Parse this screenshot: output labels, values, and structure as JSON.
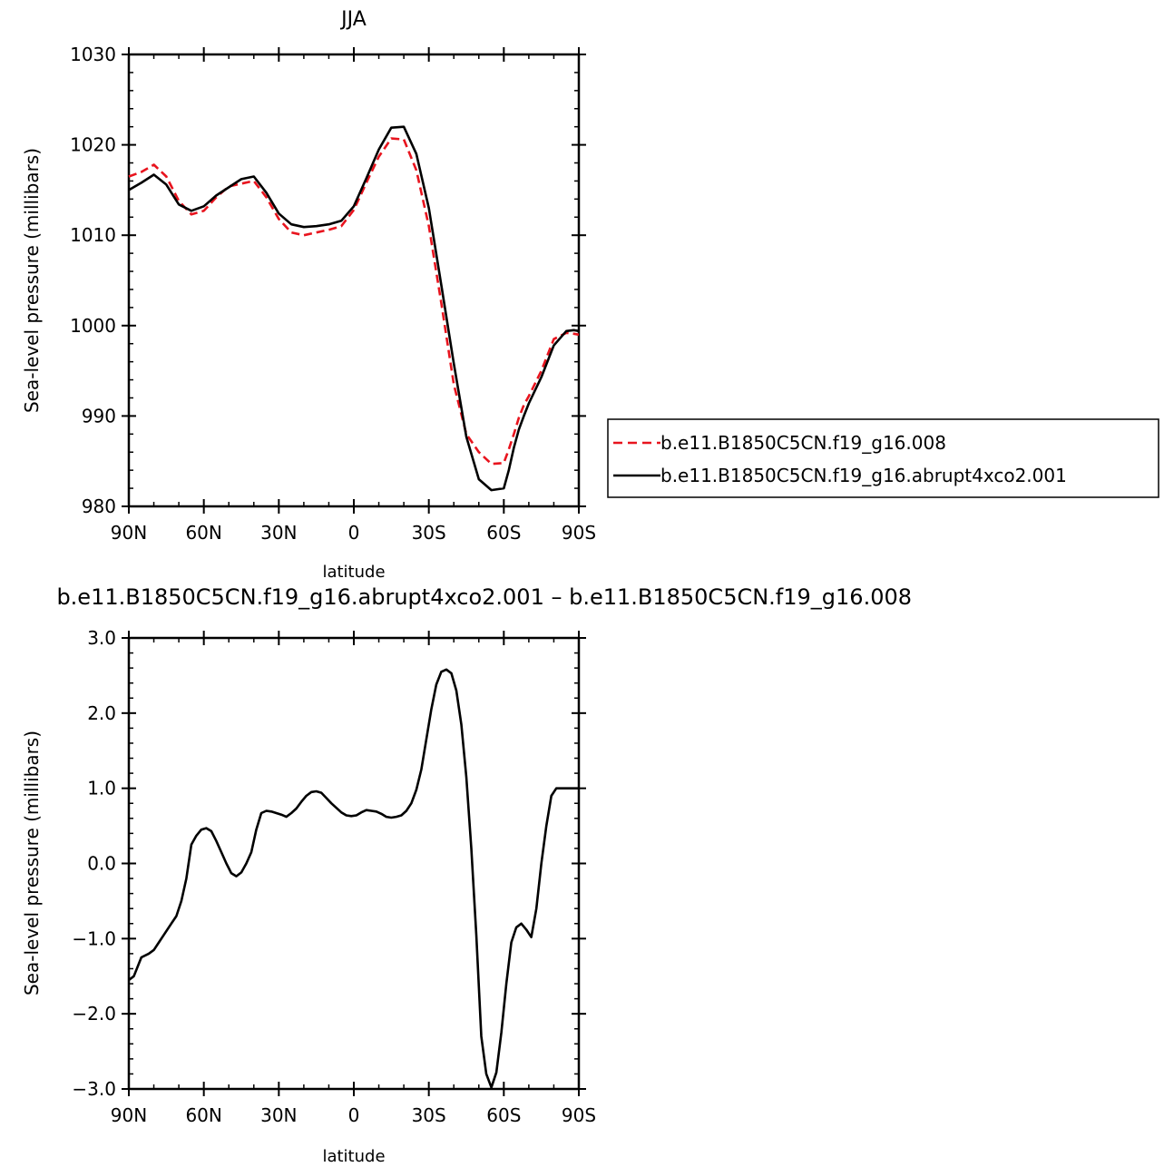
{
  "chart_data": [
    {
      "type": "line",
      "title": "JJA",
      "xlabel": "latitude",
      "ylabel": "Sea-level pressure (millibars)",
      "xlim": [
        90,
        -90
      ],
      "ylim": [
        980,
        1030
      ],
      "x_ticks": [
        90,
        60,
        30,
        0,
        -30,
        -60,
        -90
      ],
      "x_tick_labels": [
        "90N",
        "60N",
        "30N",
        "0",
        "30S",
        "60S",
        "90S"
      ],
      "y_ticks": [
        980,
        990,
        1000,
        1010,
        1020,
        1030
      ],
      "y_tick_labels": [
        "980",
        "990",
        "1000",
        "1010",
        "1020",
        "1030"
      ],
      "legend": "right",
      "series": [
        {
          "name": "b.e11.B1850C5CN.f19_g16.008",
          "color": "#e8141e",
          "dash": "dashed",
          "x": [
            90,
            85,
            80,
            75,
            70,
            65,
            60,
            55,
            50,
            45,
            40,
            35,
            30,
            25,
            20,
            15,
            10,
            5,
            0,
            -5,
            -10,
            -15,
            -20,
            -25,
            -30,
            -35,
            -40,
            -45,
            -50,
            -55,
            -60,
            -62,
            -64,
            -66,
            -68,
            -70,
            -75,
            -80,
            -85,
            -88,
            -90
          ],
          "y": [
            1016.5,
            1017.0,
            1017.8,
            1016.5,
            1013.8,
            1012.3,
            1012.7,
            1014.2,
            1015.4,
            1015.7,
            1016.0,
            1014.2,
            1011.8,
            1010.3,
            1010.0,
            1010.3,
            1010.6,
            1011.0,
            1012.8,
            1015.8,
            1018.7,
            1020.7,
            1020.6,
            1017.2,
            1011.0,
            1002.5,
            993.5,
            988.0,
            986.0,
            984.7,
            984.8,
            986.3,
            988.0,
            989.8,
            991.2,
            992.2,
            995.0,
            998.5,
            999.2,
            999.1,
            999.0
          ]
        },
        {
          "name": "b.e11.B1850C5CN.f19_g16.abrupt4xco2.001",
          "color": "#000000",
          "dash": "solid",
          "x": [
            90,
            85,
            80,
            75,
            70,
            65,
            60,
            55,
            50,
            45,
            40,
            35,
            30,
            25,
            20,
            15,
            10,
            5,
            0,
            -5,
            -10,
            -15,
            -20,
            -25,
            -30,
            -35,
            -40,
            -45,
            -50,
            -55,
            -60,
            -62,
            -64,
            -66,
            -68,
            -70,
            -75,
            -80,
            -85,
            -88,
            -90
          ],
          "y": [
            1015.0,
            1015.8,
            1016.7,
            1015.6,
            1013.4,
            1012.7,
            1013.2,
            1014.4,
            1015.3,
            1016.2,
            1016.5,
            1014.7,
            1012.4,
            1011.2,
            1010.9,
            1011.0,
            1011.2,
            1011.6,
            1013.2,
            1016.3,
            1019.5,
            1021.9,
            1022.0,
            1019.0,
            1013.0,
            1004.5,
            995.8,
            987.7,
            983.0,
            981.8,
            982.0,
            984.0,
            986.5,
            988.5,
            990.0,
            991.4,
            994.3,
            997.8,
            999.4,
            999.5,
            999.4
          ]
        }
      ]
    },
    {
      "type": "line",
      "title": "b.e11.B1850C5CN.f19_g16.abrupt4xco2.001 – b.e11.B1850C5CN.f19_g16.008",
      "xlabel": "latitude",
      "ylabel": "Sea-level pressure (millibars)",
      "xlim": [
        90,
        -90
      ],
      "ylim": [
        -3.0,
        3.0
      ],
      "x_ticks": [
        90,
        60,
        30,
        0,
        -30,
        -60,
        -90
      ],
      "x_tick_labels": [
        "90N",
        "60N",
        "30N",
        "0",
        "30S",
        "60S",
        "90S"
      ],
      "y_ticks": [
        -3.0,
        -2.0,
        -1.0,
        0.0,
        1.0,
        2.0,
        3.0
      ],
      "y_tick_labels": [
        "−3.0",
        "−2.0",
        "−1.0",
        "0.0",
        "1.0",
        "2.0",
        "3.0"
      ],
      "series": [
        {
          "name": "",
          "color": "#000000",
          "x": [
            90,
            88,
            85,
            82,
            80,
            78,
            76,
            73,
            71,
            69,
            67,
            65,
            63,
            61,
            59,
            57,
            55,
            53,
            51,
            49,
            47,
            45,
            43,
            41,
            39,
            37,
            35,
            33,
            31,
            29,
            27,
            25,
            23,
            21,
            19,
            17,
            15,
            13,
            11,
            9,
            7,
            5,
            3,
            1,
            -1,
            -3,
            -5,
            -7,
            -9,
            -11,
            -13,
            -15,
            -17,
            -19,
            -21,
            -23,
            -25,
            -27,
            -29,
            -31,
            -33,
            -35,
            -37,
            -39,
            -41,
            -43,
            -45,
            -47,
            -49,
            -51,
            -53,
            -55,
            -57,
            -59,
            -61,
            -63,
            -65,
            -67,
            -69,
            -71,
            -73,
            -75,
            -77,
            -79,
            -81,
            -83,
            -85,
            -87,
            -89,
            -90
          ],
          "y": [
            -1.55,
            -1.5,
            -1.25,
            -1.2,
            -1.15,
            -1.05,
            -0.95,
            -0.8,
            -0.7,
            -0.5,
            -0.2,
            0.25,
            0.37,
            0.45,
            0.47,
            0.43,
            0.3,
            0.15,
            0.0,
            -0.13,
            -0.17,
            -0.12,
            0.0,
            0.15,
            0.45,
            0.67,
            0.7,
            0.69,
            0.67,
            0.65,
            0.62,
            0.67,
            0.73,
            0.82,
            0.9,
            0.95,
            0.96,
            0.94,
            0.87,
            0.8,
            0.74,
            0.68,
            0.64,
            0.63,
            0.64,
            0.68,
            0.71,
            0.7,
            0.69,
            0.66,
            0.62,
            0.61,
            0.62,
            0.64,
            0.7,
            0.8,
            0.98,
            1.25,
            1.65,
            2.05,
            2.38,
            2.55,
            2.58,
            2.53,
            2.3,
            1.85,
            1.15,
            0.2,
            -0.95,
            -2.3,
            -2.8,
            -2.98,
            -2.78,
            -2.25,
            -1.6,
            -1.05,
            -0.85,
            -0.8,
            -0.88,
            -0.98,
            -0.6,
            0.0,
            0.5,
            0.9,
            1.0,
            1.0,
            1.0,
            1.0,
            1.0,
            1.0
          ]
        }
      ]
    }
  ]
}
